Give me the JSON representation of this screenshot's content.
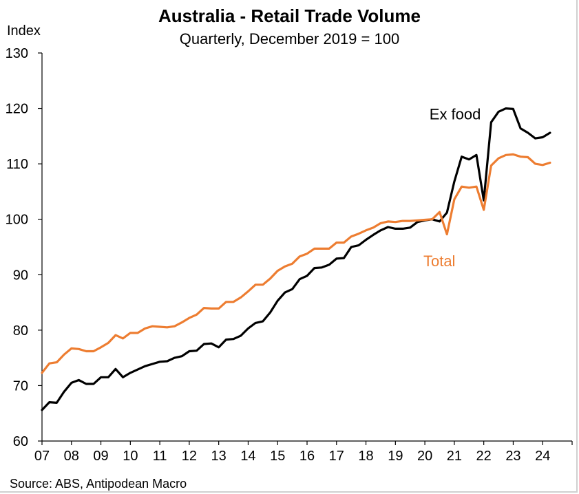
{
  "chart_data": {
    "type": "line",
    "title": "Australia - Retail Trade Volume",
    "subtitle": "Quarterly, December 2019 = 100",
    "ylabel": "Index",
    "xlabel": "",
    "source": "Source: ABS, Antipodean Macro",
    "ylim": [
      60,
      130
    ],
    "yticks": [
      60,
      70,
      80,
      90,
      100,
      110,
      120,
      130
    ],
    "xlim": [
      2007.0,
      2025.0
    ],
    "xtick_labels": [
      "07",
      "08",
      "09",
      "10",
      "11",
      "12",
      "13",
      "14",
      "15",
      "16",
      "17",
      "18",
      "19",
      "20",
      "21",
      "22",
      "23",
      "24"
    ],
    "grid": false,
    "legend": "inline labels",
    "x_start_quarter": "Mar 2007",
    "series": [
      {
        "name": "Ex food",
        "color": "#000000",
        "label_color": "#000000",
        "values": [
          65.6,
          67.0,
          66.9,
          68.9,
          70.5,
          71.0,
          70.3,
          70.3,
          71.5,
          71.5,
          73.0,
          71.5,
          72.3,
          72.9,
          73.5,
          73.9,
          74.3,
          74.4,
          75.0,
          75.3,
          76.2,
          76.3,
          77.5,
          77.6,
          76.9,
          78.3,
          78.4,
          79.0,
          80.3,
          81.3,
          81.6,
          83.2,
          85.3,
          86.8,
          87.4,
          89.2,
          89.8,
          91.2,
          91.3,
          91.8,
          92.9,
          93.0,
          95.0,
          95.3,
          96.3,
          97.2,
          98.0,
          98.6,
          98.3,
          98.3,
          98.5,
          99.5,
          99.8,
          100.0,
          99.6,
          101.2,
          106.8,
          111.3,
          110.8,
          111.6,
          103.4,
          117.5,
          119.4,
          120.0,
          119.9,
          116.4,
          115.6,
          114.6,
          114.8,
          115.6
        ]
      },
      {
        "name": "Total",
        "color": "#ED7D31",
        "label_color": "#ED7D31",
        "values": [
          72.3,
          74.0,
          74.2,
          75.6,
          76.7,
          76.6,
          76.2,
          76.2,
          76.9,
          77.7,
          79.1,
          78.5,
          79.5,
          79.5,
          80.3,
          80.7,
          80.6,
          80.5,
          80.7,
          81.4,
          82.2,
          82.8,
          84.0,
          83.9,
          83.9,
          85.1,
          85.1,
          85.9,
          87.0,
          88.2,
          88.2,
          89.3,
          90.7,
          91.5,
          92.0,
          93.3,
          93.8,
          94.7,
          94.7,
          94.7,
          95.8,
          95.8,
          96.9,
          97.4,
          98.0,
          98.5,
          99.3,
          99.6,
          99.5,
          99.7,
          99.7,
          99.8,
          99.9,
          100.0,
          101.3,
          97.3,
          103.6,
          105.9,
          105.7,
          105.9,
          101.7,
          109.7,
          111.0,
          111.6,
          111.7,
          111.3,
          111.2,
          110.0,
          109.8,
          110.2
        ]
      }
    ]
  }
}
